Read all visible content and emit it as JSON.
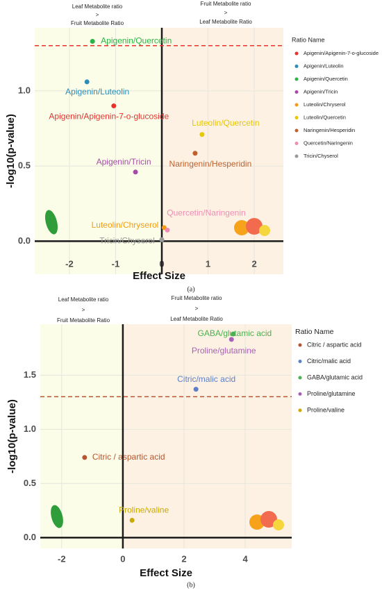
{
  "chart_data": [
    {
      "type": "scatter",
      "notes_left": [
        "Leaf Metabolite ratio",
        ">",
        "Fruit Metabolite Ratio"
      ],
      "notes_right": [
        "Fruit Metabolite ratio",
        ">",
        "Leaf Metabolite Ratio"
      ],
      "x_label": "Effect Size",
      "y_label": "-log10(p-value)",
      "legend_title": "Ratio Name",
      "caption": "(a)",
      "xlim": [
        -2.75,
        2.63
      ],
      "ylim": [
        -0.22,
        1.42
      ],
      "xticks": [
        -2,
        -1,
        0,
        1,
        2
      ],
      "yticks": [
        {
          "value": 0,
          "label": "0.0"
        },
        {
          "value": 0.5,
          "label": "0.5"
        },
        {
          "value": 1,
          "label": "1.0"
        }
      ],
      "grid": true,
      "threshold": {
        "value": 1.301,
        "color": "#e8322e"
      },
      "series": [
        {
          "name": "Apigenin/Apigenin-7-o-glucoside",
          "color": "#e8322e",
          "x": [
            -1.04
          ],
          "values": [
            0.9
          ]
        },
        {
          "name": "Apigenin/Luteolin",
          "color": "#2a8cb8",
          "x": [
            -1.62
          ],
          "values": [
            1.06
          ]
        },
        {
          "name": "Apigenin/Quercetin",
          "color": "#2db34a",
          "x": [
            -1.5
          ],
          "values": [
            1.33
          ]
        },
        {
          "name": "Apigenin/Tricin",
          "color": "#a64ca6",
          "x": [
            -0.57
          ],
          "values": [
            0.46
          ]
        },
        {
          "name": "Luteolin/Chryserol",
          "color": "#f39c12",
          "x": [
            0.05
          ],
          "values": [
            0.09
          ]
        },
        {
          "name": "Luteolin/Quercetin",
          "color": "#e6c800",
          "x": [
            0.87
          ],
          "values": [
            0.71
          ]
        },
        {
          "name": "Naringenin/Hesperidin",
          "color": "#c0622c",
          "x": [
            0.72
          ],
          "values": [
            0.585
          ]
        },
        {
          "name": "Quercetin/Naringenin",
          "color": "#f08cb4",
          "x": [
            0.12
          ],
          "values": [
            0.074
          ]
        },
        {
          "name": "Tricin/Chyserol",
          "color": "#999999",
          "x": [
            0.0
          ],
          "values": [
            0.01
          ]
        }
      ]
    },
    {
      "type": "scatter",
      "notes_left": [
        "Leaf Metabolite ratio",
        ">",
        "Fruit Metabolite Ratio"
      ],
      "notes_right": [
        "Fruit Metabolite ratio",
        ">",
        "Leaf Metabolite Ratio"
      ],
      "x_label": "Effect Size",
      "y_label": "-log10(p-value)",
      "legend_title": "Ratio Name",
      "caption": "(b)",
      "xlim": [
        -2.7,
        5.52
      ],
      "ylim": [
        -0.1,
        1.97
      ],
      "xticks": [
        -2,
        0,
        2,
        4
      ],
      "yticks": [
        {
          "value": 0,
          "label": "0.0"
        },
        {
          "value": 0.5,
          "label": "0.5"
        },
        {
          "value": 1,
          "label": "1.0"
        },
        {
          "value": 1.5,
          "label": "1.5"
        }
      ],
      "grid": true,
      "threshold": {
        "value": 1.301,
        "color": "#b5542e"
      },
      "series": [
        {
          "name": "Citric / aspartic acid",
          "color": "#b5542e",
          "x": [
            -1.25
          ],
          "values": [
            0.74
          ]
        },
        {
          "name": "Citric/malic acid",
          "color": "#5b7fc9",
          "x": [
            2.39
          ],
          "values": [
            1.37
          ]
        },
        {
          "name": "GABA/glutamic acid",
          "color": "#4caf50",
          "x": [
            3.61
          ],
          "values": [
            1.88
          ]
        },
        {
          "name": "Proline/glutamine",
          "color": "#a860b8",
          "x": [
            3.55
          ],
          "values": [
            1.83
          ]
        },
        {
          "name": "Proline/valine",
          "color": "#c9a800",
          "x": [
            0.3
          ],
          "values": [
            0.16
          ]
        }
      ]
    }
  ]
}
